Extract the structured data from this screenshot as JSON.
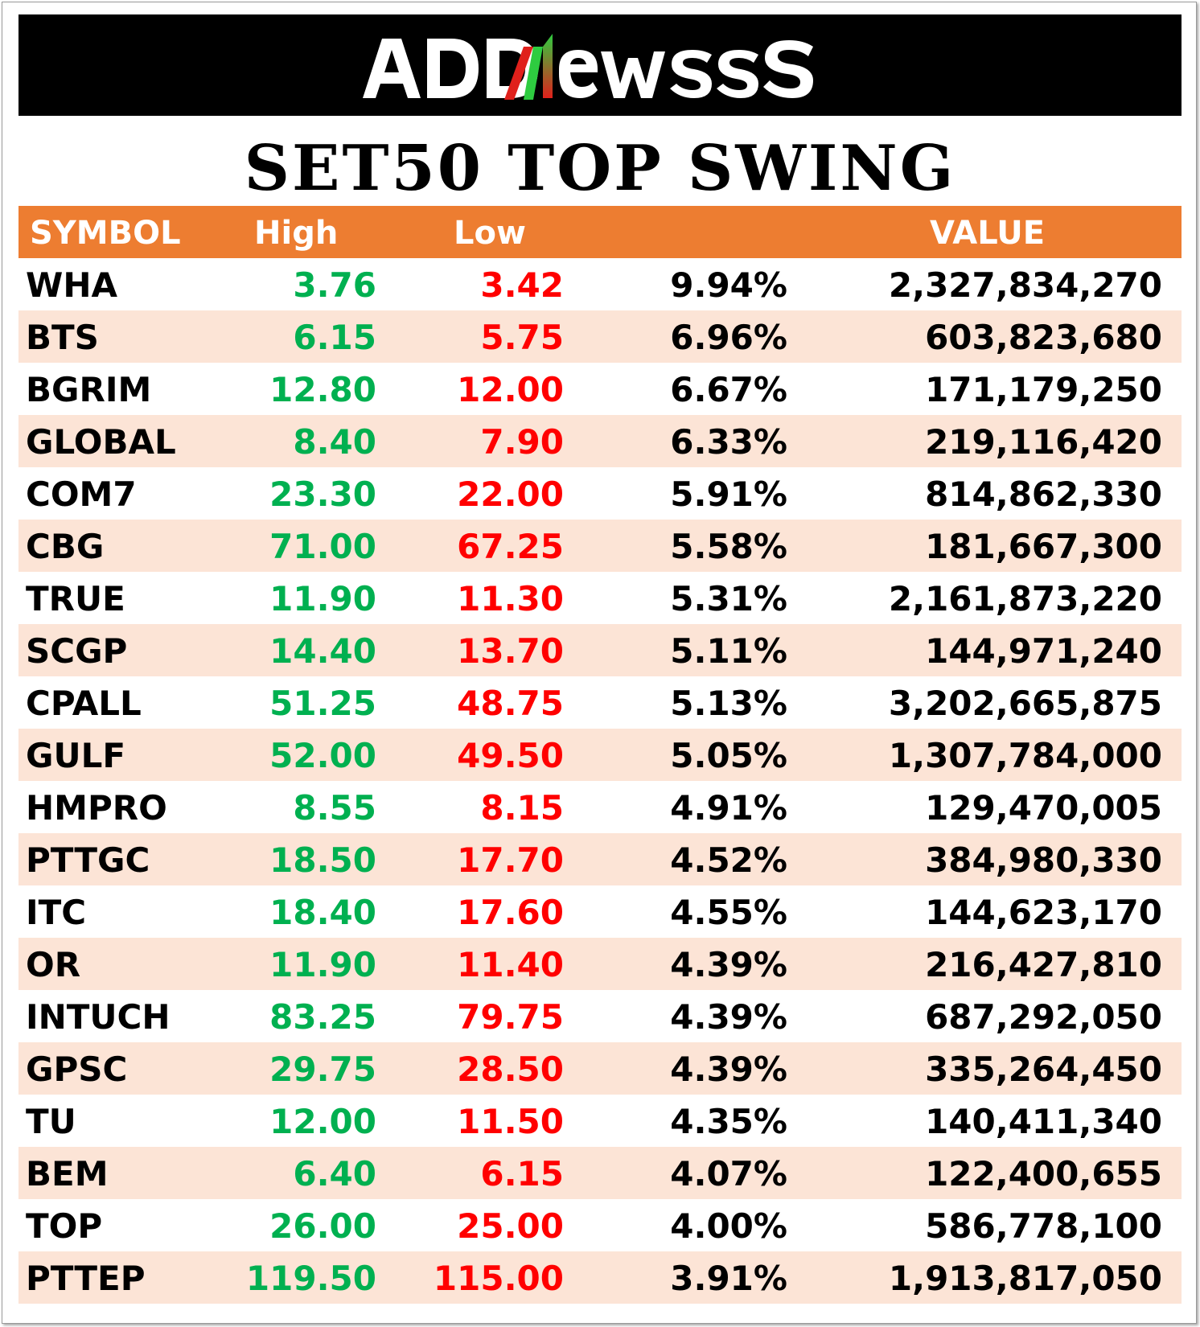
{
  "brand": {
    "logo_text": "ADDNewss",
    "colors": {
      "bar": "#000000",
      "text": "#ffffff",
      "accent_green": "#2ecc40",
      "accent_red": "#e0201b"
    }
  },
  "title": "SET50 TOP SWING",
  "table": {
    "colors": {
      "header_bg": "#ed7d31",
      "alt_row_bg": "#fce4d6",
      "high": "#00b050",
      "low": "#ff0000"
    },
    "headers": {
      "symbol": "SYMBOL",
      "high": "High",
      "low": "Low",
      "change": "",
      "value": "VALUE"
    },
    "rows": [
      {
        "symbol": "WHA",
        "high": "3.76",
        "low": "3.42",
        "change": "9.94%",
        "value": "2,327,834,270"
      },
      {
        "symbol": "BTS",
        "high": "6.15",
        "low": "5.75",
        "change": "6.96%",
        "value": "603,823,680"
      },
      {
        "symbol": "BGRIM",
        "high": "12.80",
        "low": "12.00",
        "change": "6.67%",
        "value": "171,179,250"
      },
      {
        "symbol": "GLOBAL",
        "high": "8.40",
        "low": "7.90",
        "change": "6.33%",
        "value": "219,116,420"
      },
      {
        "symbol": "COM7",
        "high": "23.30",
        "low": "22.00",
        "change": "5.91%",
        "value": "814,862,330"
      },
      {
        "symbol": "CBG",
        "high": "71.00",
        "low": "67.25",
        "change": "5.58%",
        "value": "181,667,300"
      },
      {
        "symbol": "TRUE",
        "high": "11.90",
        "low": "11.30",
        "change": "5.31%",
        "value": "2,161,873,220"
      },
      {
        "symbol": "SCGP",
        "high": "14.40",
        "low": "13.70",
        "change": "5.11%",
        "value": "144,971,240"
      },
      {
        "symbol": "CPALL",
        "high": "51.25",
        "low": "48.75",
        "change": "5.13%",
        "value": "3,202,665,875"
      },
      {
        "symbol": "GULF",
        "high": "52.00",
        "low": "49.50",
        "change": "5.05%",
        "value": "1,307,784,000"
      },
      {
        "symbol": "HMPRO",
        "high": "8.55",
        "low": "8.15",
        "change": "4.91%",
        "value": "129,470,005"
      },
      {
        "symbol": "PTTGC",
        "high": "18.50",
        "low": "17.70",
        "change": "4.52%",
        "value": "384,980,330"
      },
      {
        "symbol": "ITC",
        "high": "18.40",
        "low": "17.60",
        "change": "4.55%",
        "value": "144,623,170"
      },
      {
        "symbol": "OR",
        "high": "11.90",
        "low": "11.40",
        "change": "4.39%",
        "value": "216,427,810"
      },
      {
        "symbol": "INTUCH",
        "high": "83.25",
        "low": "79.75",
        "change": "4.39%",
        "value": "687,292,050"
      },
      {
        "symbol": "GPSC",
        "high": "29.75",
        "low": "28.50",
        "change": "4.39%",
        "value": "335,264,450"
      },
      {
        "symbol": "TU",
        "high": "12.00",
        "low": "11.50",
        "change": "4.35%",
        "value": "140,411,340"
      },
      {
        "symbol": "BEM",
        "high": "6.40",
        "low": "6.15",
        "change": "4.07%",
        "value": "122,400,655"
      },
      {
        "symbol": "TOP",
        "high": "26.00",
        "low": "25.00",
        "change": "4.00%",
        "value": "586,778,100"
      },
      {
        "symbol": "PTTEP",
        "high": "119.50",
        "low": "115.00",
        "change": "3.91%",
        "value": "1,913,817,050"
      }
    ]
  }
}
